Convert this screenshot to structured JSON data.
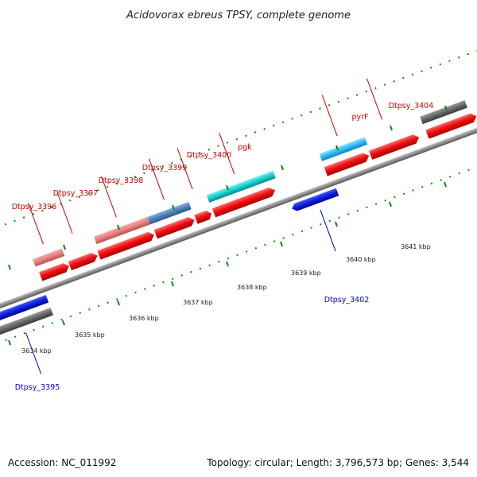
{
  "map": {
    "title": "Acidovorax ebreus TPSY, complete genome",
    "accession": "Accession: NC_011992",
    "summary": "Topology: circular; Length: 3,796,573 bp; Genes: 3,544",
    "colors": {
      "forward_label": "#cc0000",
      "reverse_label": "#0000cc",
      "cds_forward": "#ee1111",
      "cds_reverse": "#1122dd",
      "backbone": "#888888",
      "ruler_tick": "#118811"
    }
  },
  "coordinates": [
    "3634 kbp",
    "3635 kbp",
    "3636 kbp",
    "3637 kbp",
    "3638 kbp",
    "3639 kbp",
    "3640 kbp",
    "3641 kbp"
  ],
  "forward_genes": [
    {
      "label": "Dtpsy_3396"
    },
    {
      "label": "Dtpsy_3397"
    },
    {
      "label": "Dtpsy_3398"
    },
    {
      "label": "Dtpsy_3399"
    },
    {
      "label": "Dtpsy_3400"
    },
    {
      "label": "pgk"
    },
    {
      "label": "pyrF"
    },
    {
      "label": "Dtpsy_3404"
    }
  ],
  "reverse_genes": [
    {
      "label": "Dtpsy_3395"
    },
    {
      "label": "Dtpsy_3402"
    }
  ]
}
